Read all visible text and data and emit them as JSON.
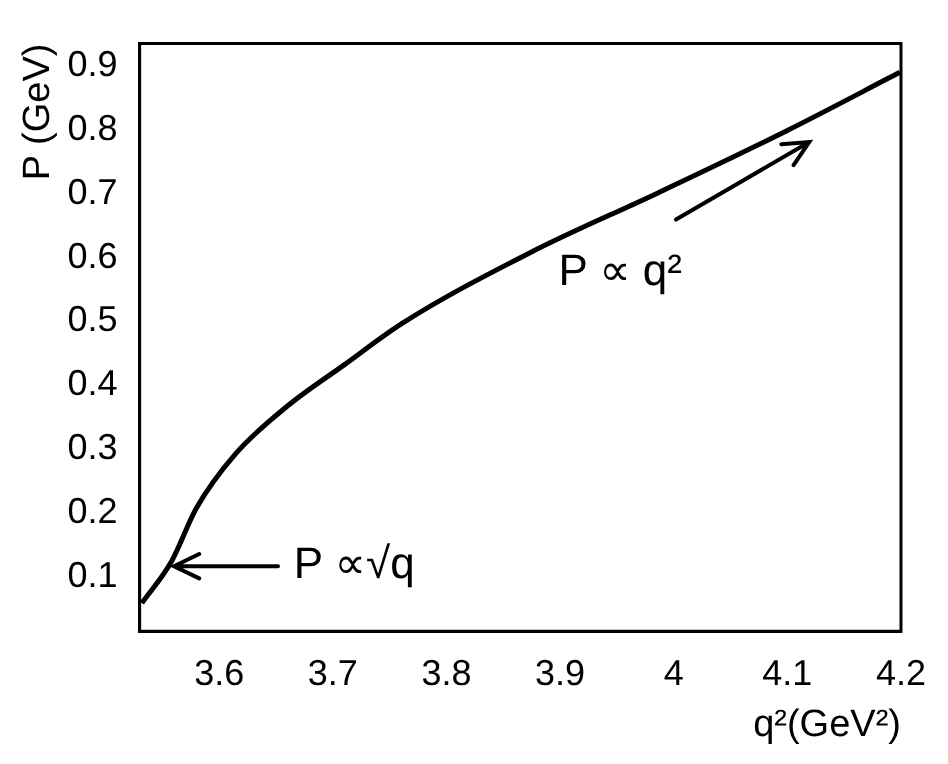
{
  "chart_data": {
    "type": "line",
    "xlabel": "q²(GeV²)",
    "ylabel": "P (GeV)",
    "x": [
      3.532,
      3.558,
      3.58,
      3.614,
      3.659,
      3.71,
      3.761,
      3.874,
      3.987,
      4.1,
      4.199
    ],
    "series": [
      {
        "color": "#000000",
        "values": [
          0.059,
          0.124,
          0.208,
          0.292,
          0.366,
          0.432,
          0.497,
          0.608,
          0.702,
          0.799,
          0.89
        ]
      }
    ],
    "xlim": [
      3.53,
      4.2
    ],
    "xticks": [
      3.6,
      3.7,
      3.8,
      3.9,
      4,
      4.1,
      4.2
    ],
    "ylim": [
      0.015,
      0.935
    ],
    "yticks": [
      0.1,
      0.2,
      0.3,
      0.4,
      0.5,
      0.6,
      0.7,
      0.8,
      0.9
    ],
    "grid": false,
    "legend": false,
    "marker": "none",
    "line_style": "solid",
    "annotations": [
      {
        "text": "P ∝√q",
        "x": 3.553,
        "y": 0.118
      },
      "P ∝ q²"
    ]
  }
}
